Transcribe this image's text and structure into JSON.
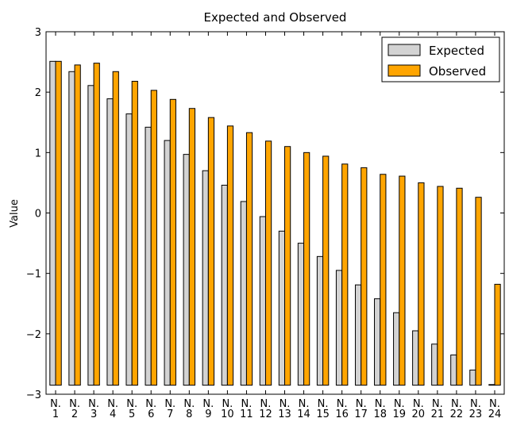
{
  "chart_data": {
    "type": "bar",
    "title": "Expected and Observed",
    "xlabel": "",
    "ylabel": "Value",
    "ylim": [
      -3,
      3
    ],
    "yticks": [
      -3,
      -2,
      -1,
      0,
      1,
      2,
      3
    ],
    "ytick_labels": [
      "−3",
      "−2",
      "−1",
      "0",
      "1",
      "2",
      "3"
    ],
    "baseline": -2.85,
    "grid": false,
    "legend_position": "top-right",
    "categories": [
      "N. 1",
      "N. 2",
      "N. 3",
      "N. 4",
      "N. 5",
      "N. 6",
      "N. 7",
      "N. 8",
      "N. 9",
      "N. 10",
      "N. 11",
      "N. 12",
      "N. 13",
      "N. 14",
      "N. 15",
      "N. 16",
      "N. 17",
      "N. 18",
      "N. 19",
      "N. 20",
      "N. 21",
      "N. 22",
      "N. 23",
      "N. 24"
    ],
    "series": [
      {
        "name": "Expected",
        "color": "#d3d3d3",
        "values": [
          2.51,
          2.34,
          2.11,
          1.89,
          1.64,
          1.42,
          1.2,
          0.97,
          0.7,
          0.46,
          0.19,
          -0.06,
          -0.3,
          -0.5,
          -0.72,
          -0.95,
          -1.19,
          -1.42,
          -1.65,
          -1.95,
          -2.17,
          -2.35,
          -2.6,
          -2.84
        ]
      },
      {
        "name": "Observed",
        "color": "#ffa500",
        "values": [
          2.51,
          2.45,
          2.48,
          2.34,
          2.18,
          2.03,
          1.88,
          1.73,
          1.58,
          1.44,
          1.33,
          1.19,
          1.1,
          1.0,
          0.94,
          0.81,
          0.75,
          0.64,
          0.61,
          0.5,
          0.44,
          0.41,
          0.26,
          -1.18
        ]
      }
    ]
  }
}
